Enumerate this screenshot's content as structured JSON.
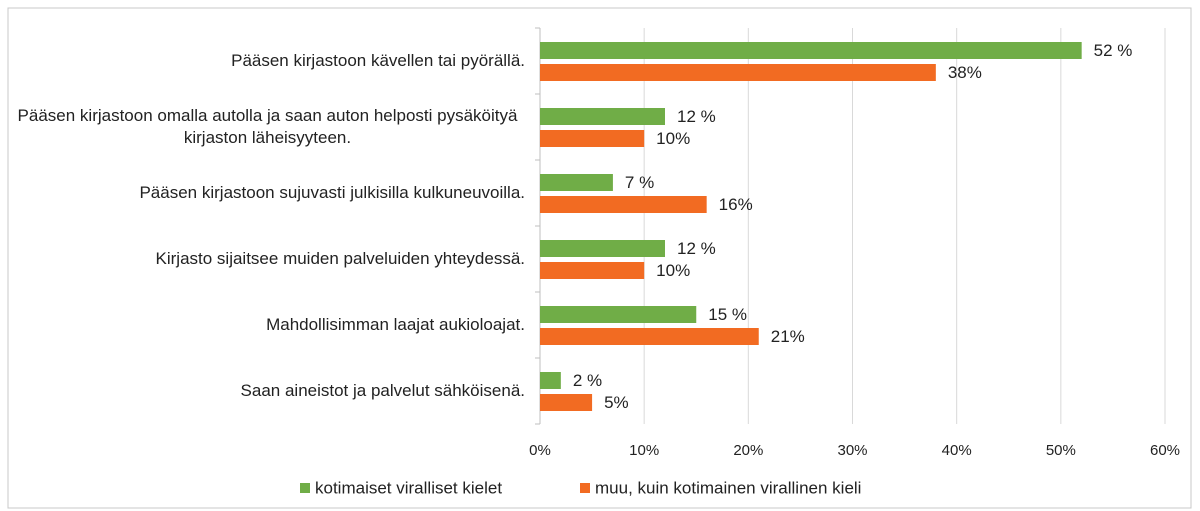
{
  "chart_data": {
    "type": "bar",
    "orientation": "horizontal",
    "categories": [
      "Pääsen kirjastoon kävellen tai pyörällä.",
      "Pääsen kirjastoon omalla autolla ja saan auton helposti pysäköityä kirjaston läheisyyteen.",
      "Pääsen kirjastoon sujuvasti julkisilla kulkuneuvoilla.",
      "Kirjasto sijaitsee muiden palveluiden yhteydessä.",
      "Mahdollisimman laajat aukioloajat.",
      "Saan aineistot ja palvelut sähköisenä."
    ],
    "series": [
      {
        "name": "kotimaiset viralliset kielet",
        "color": "#70ad47",
        "values": [
          52,
          12,
          7,
          12,
          15,
          2
        ],
        "value_labels": [
          "52 %",
          "12 %",
          "7 %",
          "12 %",
          "15 %",
          "2 %"
        ]
      },
      {
        "name": "muu, kuin kotimainen virallinen kieli",
        "color": "#f26b22",
        "values": [
          38,
          10,
          16,
          10,
          21,
          5
        ],
        "value_labels": [
          "38%",
          "10%",
          "16%",
          "10%",
          "21%",
          "5%"
        ]
      }
    ],
    "xlim": [
      0,
      60
    ],
    "xticks": [
      {
        "value": 0,
        "label": "0%"
      },
      {
        "value": 10,
        "label": "10%"
      },
      {
        "value": 20,
        "label": "20%"
      },
      {
        "value": 30,
        "label": "30%"
      },
      {
        "value": 40,
        "label": "40%"
      },
      {
        "value": 50,
        "label": "50%"
      },
      {
        "value": 60,
        "label": "60%"
      }
    ],
    "grid": true,
    "legend": "bottom"
  }
}
